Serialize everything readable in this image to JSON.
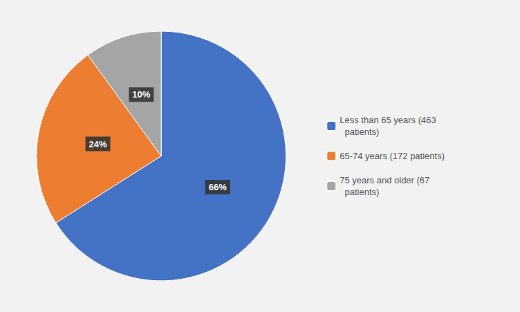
{
  "chart_data": {
    "type": "pie",
    "categories": [
      "Less than 65 years (463\n  patients)",
      "65-74 years (172 patients)",
      "75 years and older (67\n  patients)"
    ],
    "values": [
      66,
      24,
      10
    ],
    "value_labels": [
      "66%",
      "24%",
      "10%"
    ],
    "colors": [
      "#4472C4",
      "#ED7D31",
      "#A5A5A5"
    ],
    "data_labels": true,
    "legend": "right"
  }
}
